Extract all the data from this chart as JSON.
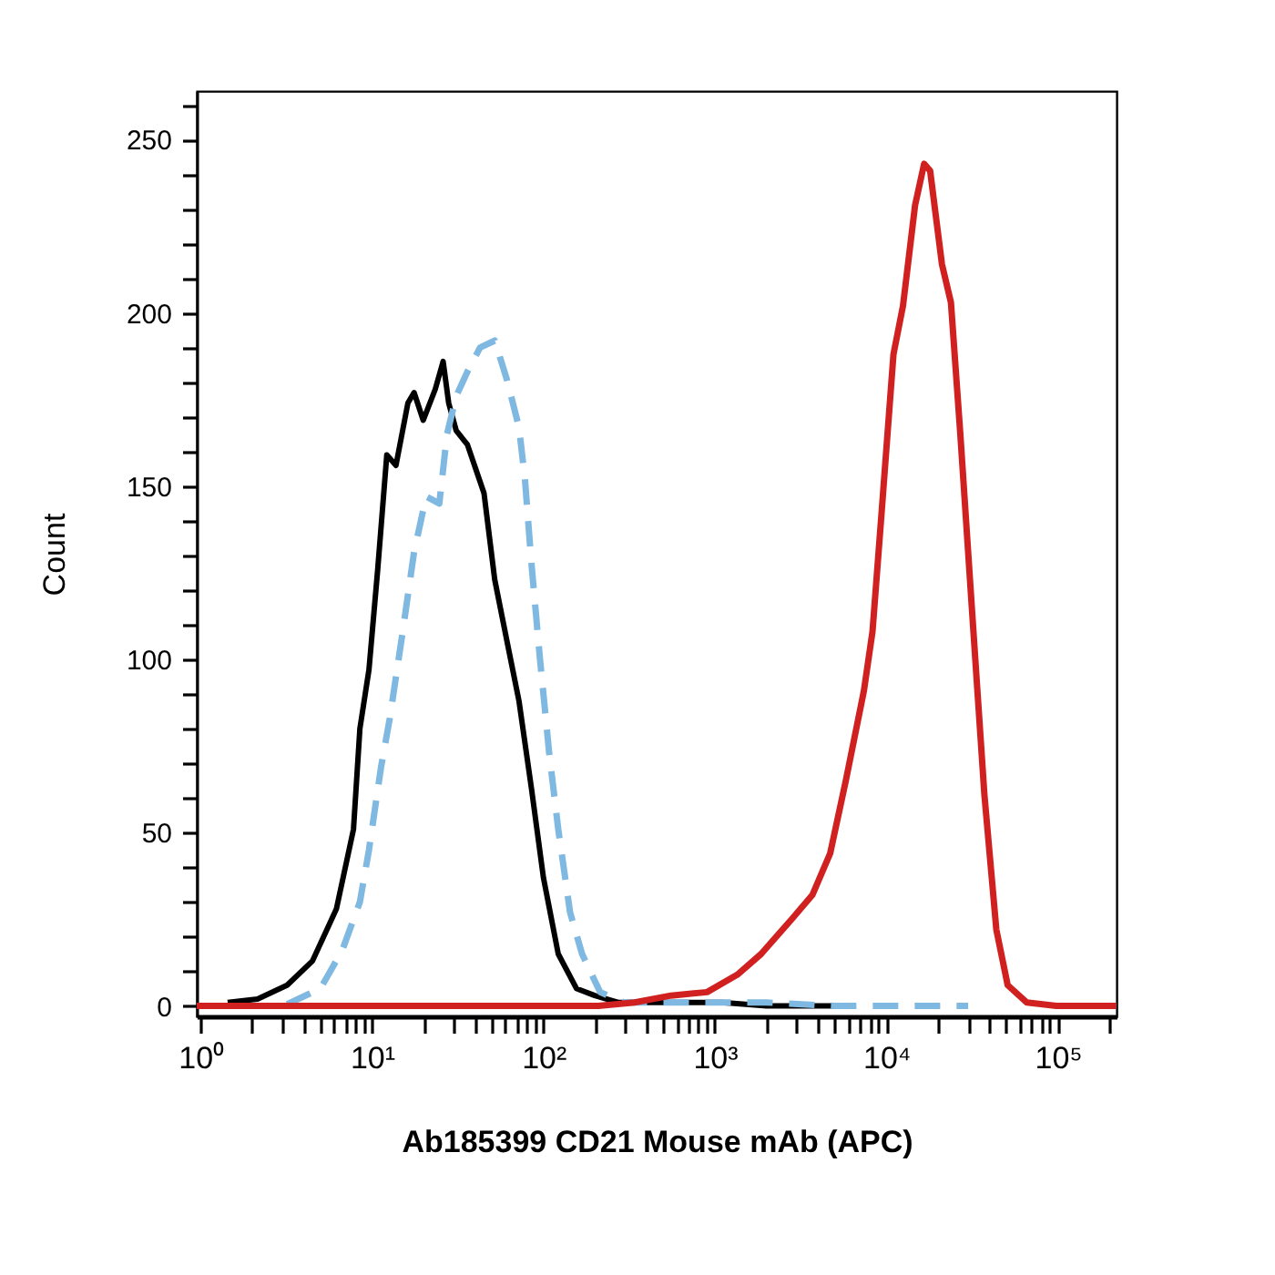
{
  "chart_data": {
    "type": "line",
    "xlabel": "Ab185399 CD21 Mouse mAb (APC)",
    "ylabel": "Count",
    "log": "x",
    "grid": false,
    "marker": "none",
    "xlim": [
      0.95,
      220000
    ],
    "ylim": [
      -3,
      264
    ],
    "xticks": [
      {
        "value": 1,
        "label": "10⁰"
      },
      {
        "value": 2,
        "label": null
      },
      {
        "value": 3,
        "label": null
      },
      {
        "value": 4,
        "label": null
      },
      {
        "value": 5,
        "label": null
      },
      {
        "value": 6,
        "label": null
      },
      {
        "value": 7,
        "label": null
      },
      {
        "value": 8,
        "label": null
      },
      {
        "value": 9,
        "label": null
      },
      {
        "value": 10,
        "label": "10¹"
      },
      {
        "value": 20,
        "label": null
      },
      {
        "value": 30,
        "label": null
      },
      {
        "value": 40,
        "label": null
      },
      {
        "value": 50,
        "label": null
      },
      {
        "value": 60,
        "label": null
      },
      {
        "value": 70,
        "label": null
      },
      {
        "value": 80,
        "label": null
      },
      {
        "value": 90,
        "label": null
      },
      {
        "value": 100,
        "label": "10²"
      },
      {
        "value": 200,
        "label": null
      },
      {
        "value": 300,
        "label": null
      },
      {
        "value": 400,
        "label": null
      },
      {
        "value": 500,
        "label": null
      },
      {
        "value": 600,
        "label": null
      },
      {
        "value": 700,
        "label": null
      },
      {
        "value": 800,
        "label": null
      },
      {
        "value": 900,
        "label": null
      },
      {
        "value": 1000,
        "label": "10³"
      },
      {
        "value": 2000,
        "label": null
      },
      {
        "value": 3000,
        "label": null
      },
      {
        "value": 4000,
        "label": null
      },
      {
        "value": 5000,
        "label": null
      },
      {
        "value": 6000,
        "label": null
      },
      {
        "value": 7000,
        "label": null
      },
      {
        "value": 8000,
        "label": null
      },
      {
        "value": 9000,
        "label": null
      },
      {
        "value": 10000,
        "label": "10⁴"
      },
      {
        "value": 20000,
        "label": null
      },
      {
        "value": 30000,
        "label": null
      },
      {
        "value": 40000,
        "label": null
      },
      {
        "value": 50000,
        "label": null
      },
      {
        "value": 60000,
        "label": null
      },
      {
        "value": 70000,
        "label": null
      },
      {
        "value": 80000,
        "label": null
      },
      {
        "value": 90000,
        "label": null
      },
      {
        "value": 100000,
        "label": "10⁵"
      },
      {
        "value": 200000,
        "label": null
      }
    ],
    "yticks": [
      0,
      {
        "value": 10,
        "label": null
      },
      {
        "value": 20,
        "label": null
      },
      {
        "value": 30,
        "label": null
      },
      {
        "value": 40,
        "label": null
      },
      50,
      {
        "value": 60,
        "label": null
      },
      {
        "value": 70,
        "label": null
      },
      {
        "value": 80,
        "label": null
      },
      {
        "value": 90,
        "label": null
      },
      100,
      {
        "value": 110,
        "label": null
      },
      {
        "value": 120,
        "label": null
      },
      {
        "value": 130,
        "label": null
      },
      {
        "value": 140,
        "label": null
      },
      150,
      {
        "value": 160,
        "label": null
      },
      {
        "value": 170,
        "label": null
      },
      {
        "value": 180,
        "label": null
      },
      {
        "value": 190,
        "label": null
      },
      200,
      {
        "value": 210,
        "label": null
      },
      {
        "value": 220,
        "label": null
      },
      {
        "value": 230,
        "label": null
      },
      {
        "value": 240,
        "label": null
      },
      250,
      {
        "value": 260,
        "label": null
      }
    ],
    "series": [
      {
        "color": "#000000",
        "line_style": "solid",
        "x": [
          1.44,
          2.15,
          3.2,
          4.5,
          6.2,
          7.8,
          8.5,
          9.6,
          10.8,
          12.2,
          13.8,
          16.2,
          17.6,
          19.9,
          23.4,
          26,
          28,
          31,
          36,
          45,
          52,
          62,
          72,
          85,
          100,
          122,
          156,
          199,
          275,
          500,
          1100,
          2000,
          5000
        ],
        "values": [
          1,
          2,
          6,
          13,
          28,
          51,
          80,
          97,
          126,
          159,
          156,
          174,
          177,
          169,
          178,
          186,
          174,
          166,
          162,
          148,
          123,
          104,
          88,
          63,
          37,
          15,
          5,
          3,
          1,
          1,
          1,
          0,
          0
        ]
      },
      {
        "color": "#7fb8e0",
        "line_style": "dashed",
        "x": [
          3.2,
          5,
          6.7,
          8.5,
          9.6,
          11.3,
          12.7,
          15,
          17.6,
          20.7,
          24.7,
          27.4,
          31,
          36,
          42.7,
          52,
          61,
          72,
          78,
          85,
          95.5,
          108,
          122,
          143,
          168,
          214,
          295,
          2000,
          5000,
          30000
        ],
        "values": [
          0.5,
          5,
          16,
          30,
          45,
          69,
          83,
          107,
          131,
          147,
          145,
          165,
          176,
          183,
          190,
          192,
          181,
          167,
          152,
          128,
          100,
          73,
          51,
          27,
          15,
          4,
          1,
          1,
          0,
          0
        ]
      },
      {
        "color": "#d02020",
        "line_style": "solid",
        "x": [
          0.95,
          100,
          209,
          340,
          555,
          900,
          1350,
          1860,
          2800,
          3700,
          4700,
          5800,
          7400,
          8300,
          9400,
          11000,
          12500,
          14700,
          16600,
          18000,
          21100,
          23800,
          27000,
          31700,
          37300,
          43800,
          51000,
          66000,
          98000,
          219000
        ],
        "values": [
          0,
          0,
          0,
          1,
          3,
          4,
          9,
          15,
          25,
          32,
          44,
          65,
          91,
          108,
          143,
          188,
          202,
          231,
          243,
          241,
          214,
          203,
          165,
          113,
          61,
          22,
          6,
          1,
          0,
          0
        ]
      }
    ]
  }
}
